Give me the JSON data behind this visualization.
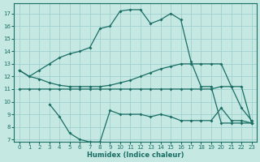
{
  "xlabel": "Humidex (Indice chaleur)",
  "background_color": "#c5e8e2",
  "grid_color": "#99cccc",
  "line_color": "#1a6e64",
  "xlim": [
    -0.5,
    23.5
  ],
  "ylim": [
    6.8,
    17.8
  ],
  "yticks": [
    7,
    8,
    9,
    10,
    11,
    12,
    13,
    14,
    15,
    16,
    17
  ],
  "xticks": [
    0,
    1,
    2,
    3,
    4,
    5,
    6,
    7,
    8,
    9,
    10,
    11,
    12,
    13,
    14,
    15,
    16,
    17,
    18,
    19,
    20,
    21,
    22,
    23
  ],
  "line1_x": [
    0,
    1,
    2,
    3,
    4,
    5,
    6,
    7,
    8,
    9,
    10,
    11,
    12,
    13,
    14,
    15,
    16,
    17,
    18,
    19,
    20,
    21,
    22,
    23
  ],
  "line1_y": [
    12.5,
    12.0,
    12.5,
    13.0,
    13.5,
    13.8,
    14.0,
    14.3,
    15.8,
    16.0,
    17.2,
    17.3,
    17.3,
    16.2,
    16.5,
    17.0,
    16.5,
    13.2,
    11.2,
    11.2,
    8.3,
    8.3,
    8.3,
    8.3
  ],
  "line2_x": [
    0,
    1,
    2,
    3,
    4,
    5,
    6,
    7,
    8,
    9,
    10,
    11,
    12,
    13,
    14,
    15,
    16,
    17,
    18,
    19,
    20,
    21,
    22,
    23
  ],
  "line2_y": [
    12.5,
    12.0,
    11.8,
    11.5,
    11.3,
    11.2,
    11.2,
    11.2,
    11.2,
    11.3,
    11.5,
    11.7,
    12.0,
    12.3,
    12.6,
    12.8,
    13.0,
    13.0,
    13.0,
    13.0,
    13.0,
    11.2,
    11.2,
    8.3
  ],
  "line3_x": [
    0,
    1,
    2,
    3,
    4,
    5,
    6,
    7,
    8,
    9,
    10,
    11,
    12,
    13,
    14,
    15,
    16,
    17,
    18,
    19,
    20,
    21,
    22,
    23
  ],
  "line3_y": [
    11.0,
    11.0,
    11.0,
    11.0,
    11.0,
    11.0,
    11.0,
    11.0,
    11.0,
    11.0,
    11.0,
    11.0,
    11.0,
    11.0,
    11.0,
    11.0,
    11.0,
    11.0,
    11.0,
    11.0,
    11.2,
    11.2,
    9.5,
    8.5
  ],
  "line4_x": [
    3,
    4,
    5,
    6,
    7,
    8,
    9,
    10,
    11,
    12,
    13,
    14,
    15,
    16,
    17,
    18,
    19,
    20,
    21,
    22,
    23
  ],
  "line4_y": [
    9.8,
    8.8,
    7.5,
    7.0,
    6.8,
    6.8,
    9.3,
    9.0,
    9.0,
    9.0,
    8.8,
    9.0,
    8.8,
    8.5,
    8.5,
    8.5,
    8.5,
    9.5,
    8.5,
    8.5,
    8.3
  ]
}
